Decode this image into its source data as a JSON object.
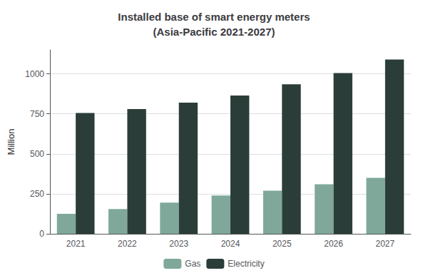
{
  "chart_data": {
    "type": "bar",
    "title": "Installed base of smart energy meters\n(Asia-Pacific 2021-2027)",
    "ylabel": "Million",
    "categories": [
      "2021",
      "2022",
      "2023",
      "2024",
      "2025",
      "2026",
      "2027"
    ],
    "series": [
      {
        "name": "Gas",
        "color": "#7fa89a",
        "values": [
          125,
          155,
          195,
          240,
          270,
          310,
          350
        ]
      },
      {
        "name": "Electricity",
        "color": "#2b3d38",
        "values": [
          755,
          780,
          820,
          865,
          935,
          1005,
          1090
        ]
      }
    ],
    "ylim": [
      0,
      1150
    ],
    "yticks": [
      0,
      250,
      500,
      750,
      1000
    ],
    "grid": true,
    "legend": "bottom"
  }
}
